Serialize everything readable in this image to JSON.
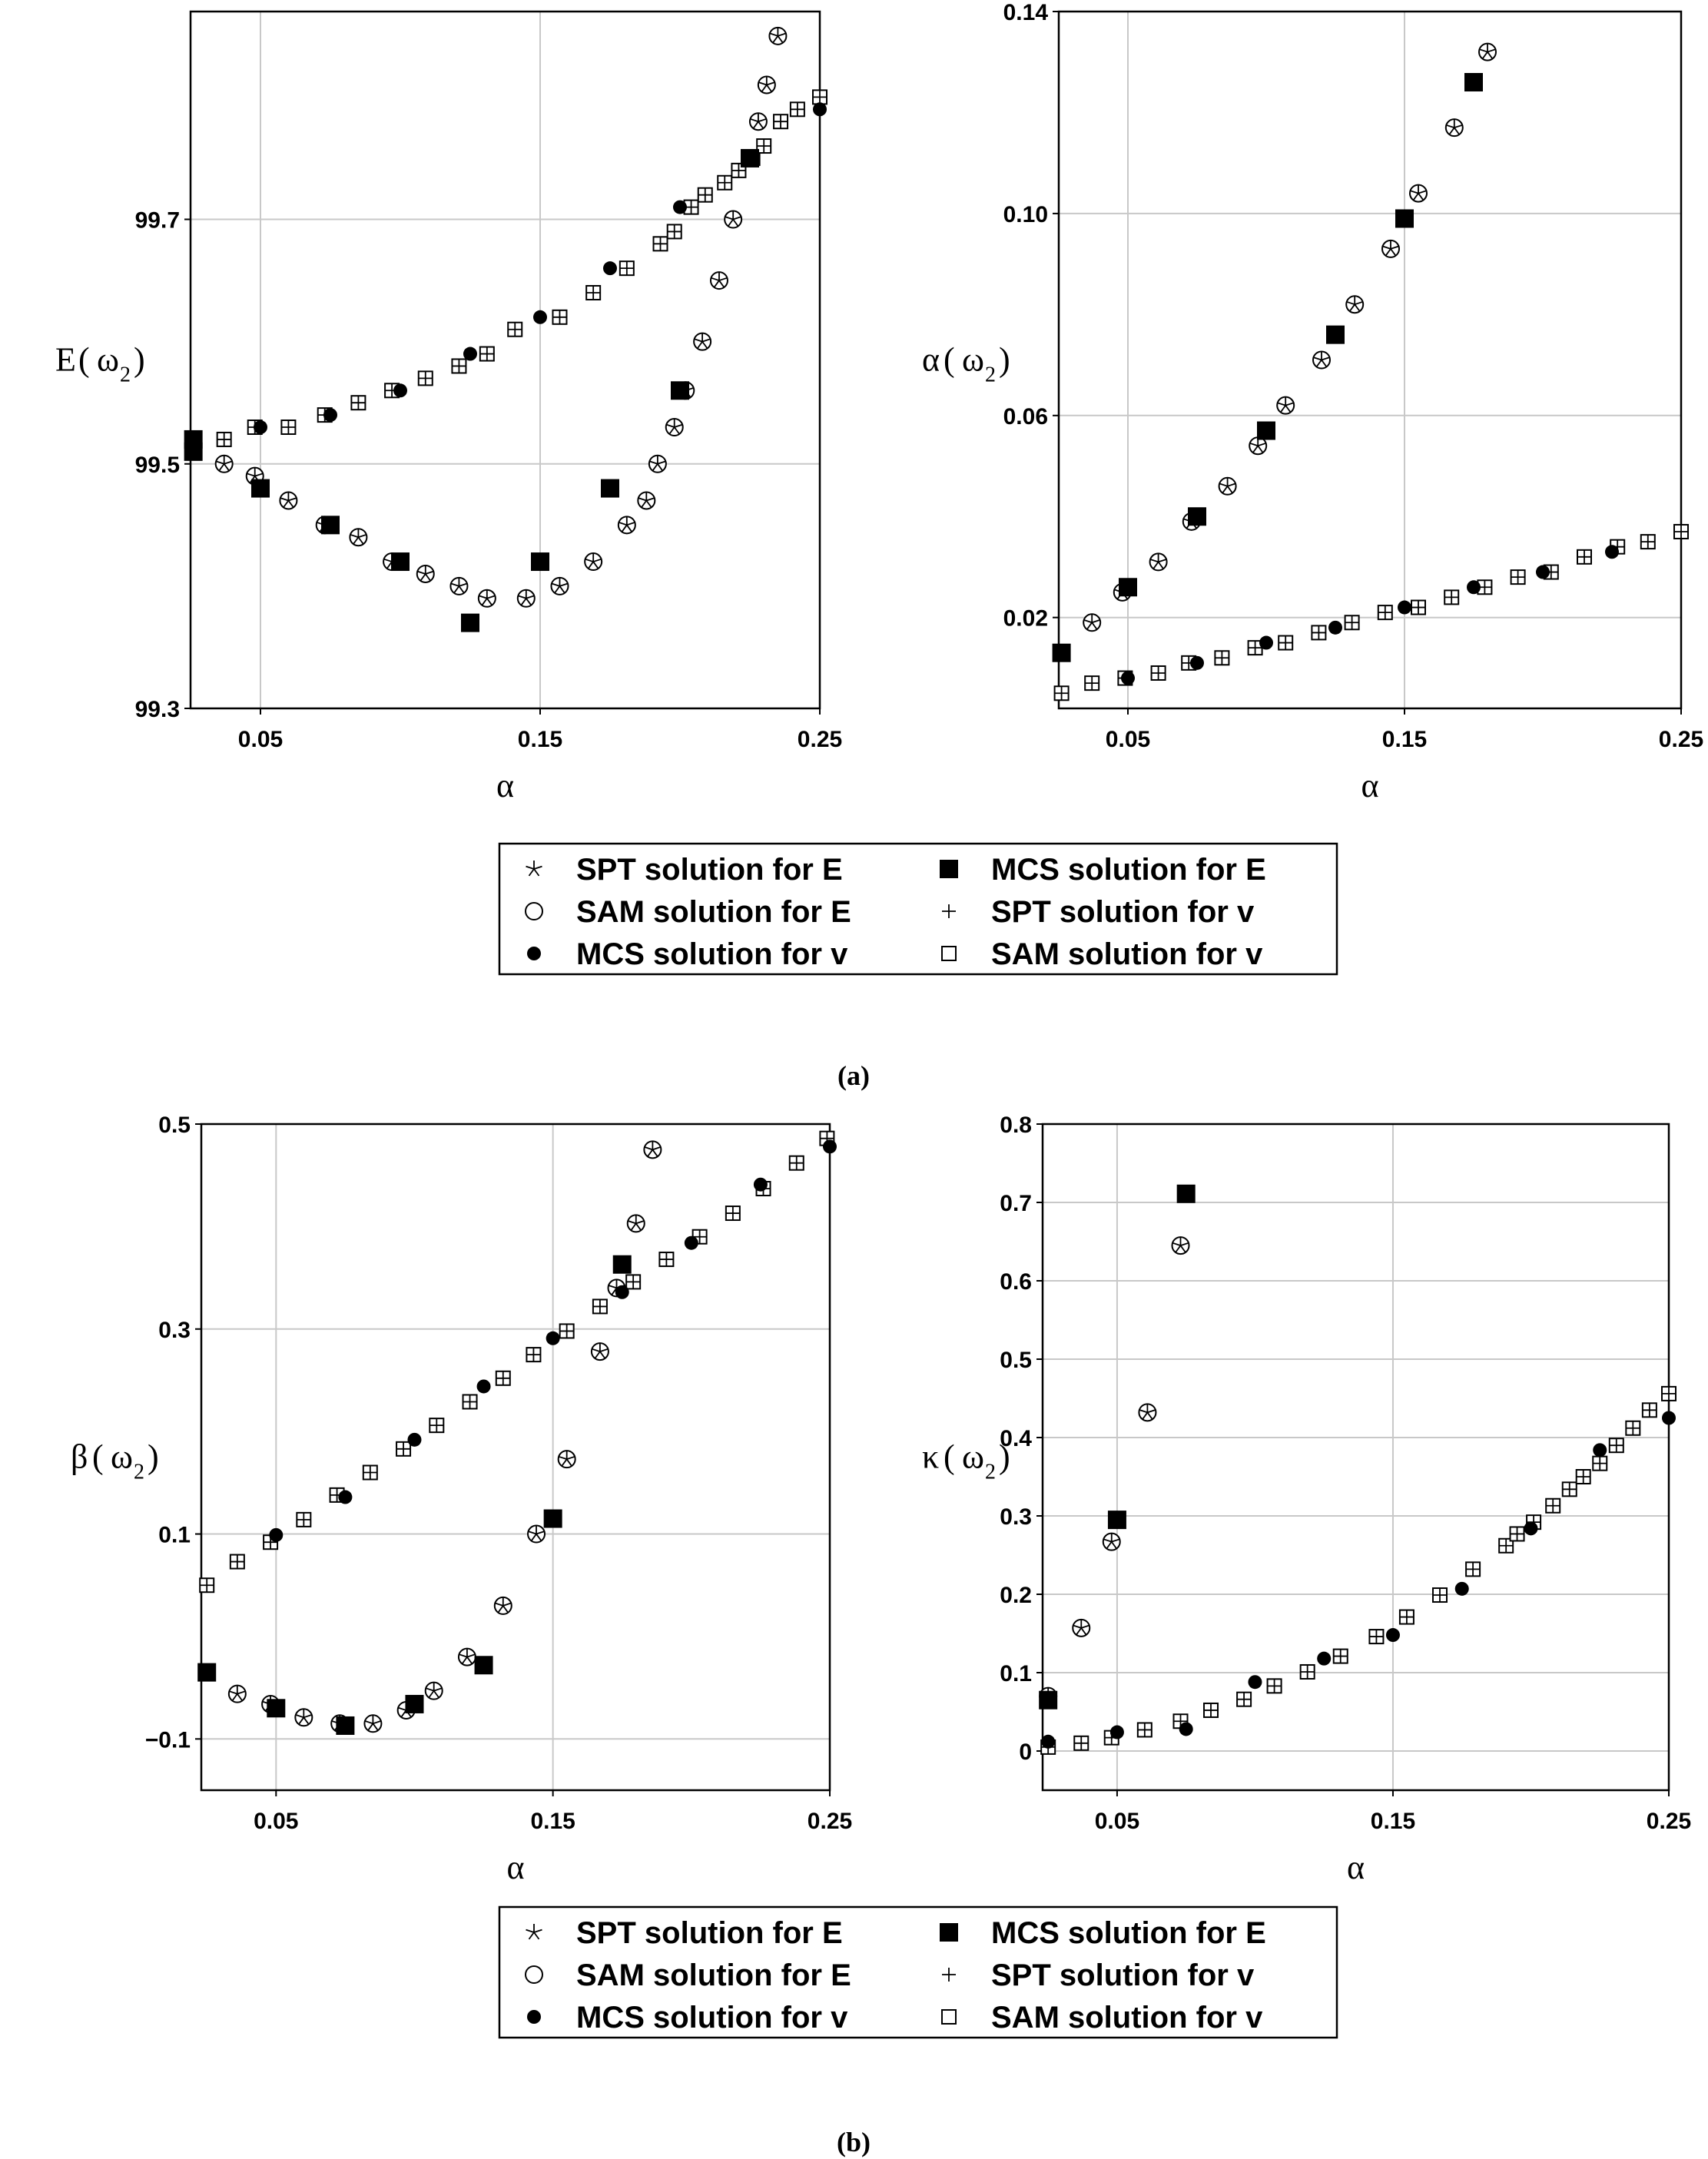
{
  "legend": {
    "entries": [
      {
        "key": "spt_E",
        "symbol": "star",
        "label": "SPT solution for E"
      },
      {
        "key": "mcs_E",
        "symbol": "square-filled",
        "label": "MCS solution for E"
      },
      {
        "key": "sam_E",
        "symbol": "circle-open",
        "label": "SAM solution for E"
      },
      {
        "key": "spt_v",
        "symbol": "plus",
        "label": "SPT solution for v"
      },
      {
        "key": "mcs_v",
        "symbol": "circle-filled",
        "label": "MCS solution for v"
      },
      {
        "key": "sam_v",
        "symbol": "square-open",
        "label": "SAM solution for v"
      }
    ]
  },
  "captions": {
    "a": "(a)",
    "b": "(b)"
  },
  "chart_data": [
    {
      "type": "scatter",
      "id": "E",
      "ylabel_main": "E",
      "ylabel_arg": "ω",
      "ylabel_sub": "2",
      "xlabel": "α",
      "xlim": [
        0.025,
        0.25
      ],
      "ylim": [
        99.3,
        99.87
      ],
      "xticks": [
        0.05,
        0.15,
        0.25
      ],
      "xtick_labels": [
        "0.05",
        "0.15",
        "0.25"
      ],
      "yticks": [
        99.3,
        99.5,
        99.7
      ],
      "ytick_labels": [
        "99.3",
        "99.5",
        "99.7"
      ],
      "series": {
        "sam_E": {
          "x": [
            0.037,
            0.048,
            0.06,
            0.073,
            0.085,
            0.097,
            0.109,
            0.121,
            0.131,
            0.145,
            0.157,
            0.169,
            0.181,
            0.188,
            0.192,
            0.198,
            0.202,
            0.208,
            0.214,
            0.219,
            0.228,
            0.231,
            0.235
          ],
          "y": [
            99.5,
            99.49,
            99.47,
            99.45,
            99.44,
            99.42,
            99.41,
            99.4,
            99.39,
            99.39,
            99.4,
            99.42,
            99.45,
            99.47,
            99.5,
            99.53,
            99.56,
            99.6,
            99.65,
            99.7,
            99.78,
            99.81,
            99.85
          ]
        },
        "spt_E": {
          "x": [
            0.037,
            0.048,
            0.06,
            0.073,
            0.085,
            0.097,
            0.109,
            0.121,
            0.131,
            0.145,
            0.157,
            0.169,
            0.181,
            0.188,
            0.192,
            0.198,
            0.202,
            0.208,
            0.214,
            0.219,
            0.228,
            0.231,
            0.235
          ],
          "y": [
            99.5,
            99.49,
            99.47,
            99.45,
            99.44,
            99.42,
            99.41,
            99.4,
            99.39,
            99.39,
            99.4,
            99.42,
            99.45,
            99.47,
            99.5,
            99.53,
            99.56,
            99.6,
            99.65,
            99.7,
            99.78,
            99.81,
            99.85
          ]
        },
        "mcs_E": {
          "x": [
            0.026,
            0.026,
            0.05,
            0.075,
            0.1,
            0.125,
            0.15,
            0.175,
            0.2,
            0.225
          ],
          "y": [
            99.52,
            99.51,
            99.48,
            99.45,
            99.42,
            99.37,
            99.42,
            99.48,
            99.56,
            99.75
          ]
        },
        "sam_v": {
          "x": [
            0.026,
            0.037,
            0.048,
            0.06,
            0.073,
            0.085,
            0.097,
            0.109,
            0.121,
            0.131,
            0.141,
            0.157,
            0.169,
            0.181,
            0.193,
            0.198,
            0.204,
            0.209,
            0.216,
            0.221,
            0.226,
            0.23,
            0.236,
            0.242,
            0.25
          ],
          "y": [
            99.51,
            99.52,
            99.53,
            99.53,
            99.54,
            99.55,
            99.56,
            99.57,
            99.58,
            99.59,
            99.61,
            99.62,
            99.64,
            99.66,
            99.68,
            99.69,
            99.71,
            99.72,
            99.73,
            99.74,
            99.75,
            99.76,
            99.78,
            99.79,
            99.8
          ]
        },
        "spt_v": {
          "x": [
            0.026,
            0.037,
            0.048,
            0.06,
            0.073,
            0.085,
            0.097,
            0.109,
            0.121,
            0.131,
            0.141,
            0.157,
            0.169,
            0.181,
            0.193,
            0.198,
            0.204,
            0.209,
            0.216,
            0.221,
            0.226,
            0.23,
            0.236,
            0.242,
            0.25
          ],
          "y": [
            99.51,
            99.52,
            99.53,
            99.53,
            99.54,
            99.55,
            99.56,
            99.57,
            99.58,
            99.59,
            99.61,
            99.62,
            99.64,
            99.66,
            99.68,
            99.69,
            99.71,
            99.72,
            99.73,
            99.74,
            99.75,
            99.76,
            99.78,
            99.79,
            99.8
          ]
        },
        "mcs_v": {
          "x": [
            0.05,
            0.075,
            0.1,
            0.125,
            0.15,
            0.175,
            0.2,
            0.225,
            0.25
          ],
          "y": [
            99.53,
            99.54,
            99.56,
            99.59,
            99.62,
            99.66,
            99.71,
            99.75,
            99.79
          ]
        }
      }
    },
    {
      "type": "scatter",
      "id": "alpha",
      "ylabel_main": "α",
      "ylabel_arg": "ω",
      "ylabel_sub": "2",
      "xlabel": "α",
      "xlim": [
        0.025,
        0.25
      ],
      "ylim": [
        0.002,
        0.14
      ],
      "xticks": [
        0.05,
        0.15,
        0.25
      ],
      "xtick_labels": [
        "0.05",
        "0.15",
        "0.25"
      ],
      "yticks": [
        0.02,
        0.06,
        0.1,
        0.14
      ],
      "ytick_labels": [
        "0.02",
        "0.06",
        "0.10",
        "0.14"
      ],
      "series": {
        "sam_E": {
          "x": [
            0.037,
            0.048,
            0.061,
            0.073,
            0.086,
            0.097,
            0.107,
            0.12,
            0.132,
            0.145,
            0.155,
            0.168,
            0.18
          ],
          "y": [
            0.019,
            0.025,
            0.031,
            0.039,
            0.046,
            0.054,
            0.062,
            0.071,
            0.082,
            0.093,
            0.104,
            0.117,
            0.132
          ]
        },
        "spt_E": {
          "x": [
            0.037,
            0.048,
            0.061,
            0.073,
            0.086,
            0.097,
            0.107,
            0.12,
            0.132,
            0.145,
            0.155,
            0.168,
            0.18
          ],
          "y": [
            0.019,
            0.025,
            0.031,
            0.039,
            0.046,
            0.054,
            0.062,
            0.071,
            0.082,
            0.093,
            0.104,
            0.117,
            0.132
          ]
        },
        "mcs_E": {
          "x": [
            0.026,
            0.05,
            0.075,
            0.1,
            0.125,
            0.15,
            0.175
          ],
          "y": [
            0.013,
            0.026,
            0.04,
            0.057,
            0.076,
            0.099,
            0.126
          ]
        },
        "sam_v": {
          "x": [
            0.026,
            0.037,
            0.049,
            0.061,
            0.072,
            0.084,
            0.096,
            0.107,
            0.119,
            0.131,
            0.143,
            0.155,
            0.167,
            0.179,
            0.191,
            0.203,
            0.215,
            0.227,
            0.238,
            0.25
          ],
          "y": [
            0.005,
            0.007,
            0.008,
            0.009,
            0.011,
            0.012,
            0.014,
            0.015,
            0.017,
            0.019,
            0.021,
            0.022,
            0.024,
            0.026,
            0.028,
            0.029,
            0.032,
            0.034,
            0.035,
            0.037
          ]
        },
        "spt_v": {
          "x": [
            0.026,
            0.037,
            0.049,
            0.061,
            0.072,
            0.084,
            0.096,
            0.107,
            0.119,
            0.131,
            0.143,
            0.155,
            0.167,
            0.179,
            0.191,
            0.203,
            0.215,
            0.227,
            0.238,
            0.25
          ],
          "y": [
            0.005,
            0.007,
            0.008,
            0.009,
            0.011,
            0.012,
            0.014,
            0.015,
            0.017,
            0.019,
            0.021,
            0.022,
            0.024,
            0.026,
            0.028,
            0.029,
            0.032,
            0.034,
            0.035,
            0.037
          ]
        },
        "mcs_v": {
          "x": [
            0.05,
            0.075,
            0.1,
            0.125,
            0.15,
            0.175,
            0.2,
            0.225
          ],
          "y": [
            0.008,
            0.011,
            0.015,
            0.018,
            0.022,
            0.026,
            0.029,
            0.033
          ]
        }
      }
    },
    {
      "type": "scatter",
      "id": "beta",
      "ylabel_main": "β",
      "ylabel_arg": "ω",
      "ylabel_sub": "2",
      "xlabel": "α",
      "xlim": [
        0.023,
        0.25
      ],
      "ylim": [
        -0.15,
        0.5
      ],
      "xticks": [
        0.05,
        0.15,
        0.25
      ],
      "xtick_labels": [
        "0.05",
        "0.15",
        "0.25"
      ],
      "yticks": [
        -0.1,
        0.1,
        0.3,
        0.5
      ],
      "ytick_labels": [
        "−0.1",
        "0.1",
        "0.3",
        "0.5"
      ],
      "series": {
        "sam_E": {
          "x": [
            0.036,
            0.048,
            0.06,
            0.073,
            0.085,
            0.097,
            0.107,
            0.119,
            0.132,
            0.144,
            0.155,
            0.167,
            0.173,
            0.18,
            0.186
          ],
          "y": [
            -0.056,
            -0.066,
            -0.079,
            -0.085,
            -0.085,
            -0.072,
            -0.053,
            -0.02,
            0.03,
            0.1,
            0.173,
            0.278,
            0.34,
            0.403,
            0.475
          ]
        },
        "spt_E": {
          "x": [
            0.036,
            0.048,
            0.06,
            0.073,
            0.085,
            0.097,
            0.107,
            0.119,
            0.132,
            0.144,
            0.155,
            0.167,
            0.173,
            0.18,
            0.186
          ],
          "y": [
            -0.056,
            -0.066,
            -0.079,
            -0.085,
            -0.085,
            -0.072,
            -0.053,
            -0.02,
            0.03,
            0.1,
            0.173,
            0.278,
            0.34,
            0.403,
            0.475
          ]
        },
        "mcs_E": {
          "x": [
            0.025,
            0.05,
            0.075,
            0.1,
            0.125,
            0.15,
            0.175
          ],
          "y": [
            -0.035,
            -0.07,
            -0.087,
            -0.066,
            -0.028,
            0.115,
            0.363
          ]
        },
        "sam_v": {
          "x": [
            0.025,
            0.036,
            0.048,
            0.06,
            0.072,
            0.084,
            0.096,
            0.108,
            0.12,
            0.132,
            0.143,
            0.155,
            0.167,
            0.179,
            0.191,
            0.203,
            0.215,
            0.226,
            0.238,
            0.249
          ],
          "y": [
            0.05,
            0.073,
            0.092,
            0.114,
            0.138,
            0.16,
            0.183,
            0.206,
            0.229,
            0.252,
            0.275,
            0.298,
            0.322,
            0.346,
            0.368,
            0.39,
            0.413,
            0.437,
            0.462,
            0.486
          ]
        },
        "spt_v": {
          "x": [
            0.025,
            0.036,
            0.048,
            0.06,
            0.072,
            0.084,
            0.096,
            0.108,
            0.12,
            0.132,
            0.143,
            0.155,
            0.167,
            0.179,
            0.191,
            0.203,
            0.215,
            0.226,
            0.238,
            0.249
          ],
          "y": [
            0.05,
            0.073,
            0.092,
            0.114,
            0.138,
            0.16,
            0.183,
            0.206,
            0.229,
            0.252,
            0.275,
            0.298,
            0.322,
            0.346,
            0.368,
            0.39,
            0.413,
            0.437,
            0.462,
            0.486
          ]
        },
        "mcs_v": {
          "x": [
            0.05,
            0.075,
            0.1,
            0.125,
            0.15,
            0.175,
            0.2,
            0.225,
            0.25
          ],
          "y": [
            0.099,
            0.136,
            0.192,
            0.244,
            0.291,
            0.336,
            0.384,
            0.441,
            0.478
          ]
        }
      }
    },
    {
      "type": "scatter",
      "id": "kappa",
      "ylabel_main": "κ",
      "ylabel_arg": "ω",
      "ylabel_sub": "2",
      "xlabel": "α",
      "xlim": [
        0.023,
        0.25
      ],
      "ylim": [
        -0.05,
        0.8
      ],
      "xticks": [
        0.05,
        0.15,
        0.25
      ],
      "xtick_labels": [
        "0.05",
        "0.15",
        "0.25"
      ],
      "yticks": [
        0,
        0.1,
        0.2,
        0.3,
        0.4,
        0.5,
        0.6,
        0.7,
        0.8
      ],
      "ytick_labels": [
        "0",
        "0.1",
        "0.2",
        "0.3",
        "0.4",
        "0.5",
        "0.6",
        "0.7",
        "0.8"
      ],
      "series": {
        "sam_E": {
          "x": [
            0.025,
            0.037,
            0.048,
            0.061,
            0.073
          ],
          "y": [
            0.07,
            0.157,
            0.267,
            0.432,
            0.645
          ]
        },
        "spt_E": {
          "x": [
            0.025,
            0.037,
            0.048,
            0.061,
            0.073
          ],
          "y": [
            0.07,
            0.157,
            0.267,
            0.432,
            0.645
          ]
        },
        "mcs_E": {
          "x": [
            0.025,
            0.05,
            0.075
          ],
          "y": [
            0.065,
            0.295,
            0.711
          ]
        },
        "sam_v": {
          "x": [
            0.025,
            0.037,
            0.048,
            0.06,
            0.073,
            0.084,
            0.096,
            0.107,
            0.119,
            0.131,
            0.144,
            0.155,
            0.167,
            0.179,
            0.191,
            0.195,
            0.201,
            0.208,
            0.214,
            0.219,
            0.225,
            0.231,
            0.237,
            0.243,
            0.25
          ],
          "y": [
            0.005,
            0.01,
            0.017,
            0.027,
            0.038,
            0.052,
            0.066,
            0.083,
            0.101,
            0.121,
            0.146,
            0.171,
            0.199,
            0.232,
            0.262,
            0.277,
            0.292,
            0.313,
            0.334,
            0.35,
            0.367,
            0.39,
            0.412,
            0.435,
            0.456
          ]
        },
        "spt_v": {
          "x": [
            0.025,
            0.037,
            0.048,
            0.06,
            0.073,
            0.084,
            0.096,
            0.107,
            0.119,
            0.131,
            0.144,
            0.155,
            0.167,
            0.179,
            0.191,
            0.195,
            0.201,
            0.208,
            0.214,
            0.219,
            0.225,
            0.231,
            0.237,
            0.243,
            0.25
          ],
          "y": [
            0.005,
            0.01,
            0.017,
            0.027,
            0.038,
            0.052,
            0.066,
            0.083,
            0.101,
            0.121,
            0.146,
            0.171,
            0.199,
            0.232,
            0.262,
            0.277,
            0.292,
            0.313,
            0.334,
            0.35,
            0.367,
            0.39,
            0.412,
            0.435,
            0.456
          ]
        },
        "mcs_v": {
          "x": [
            0.025,
            0.05,
            0.075,
            0.1,
            0.125,
            0.15,
            0.175,
            0.2,
            0.225,
            0.25
          ],
          "y": [
            0.012,
            0.024,
            0.028,
            0.088,
            0.118,
            0.148,
            0.207,
            0.284,
            0.384,
            0.425
          ]
        }
      }
    }
  ]
}
